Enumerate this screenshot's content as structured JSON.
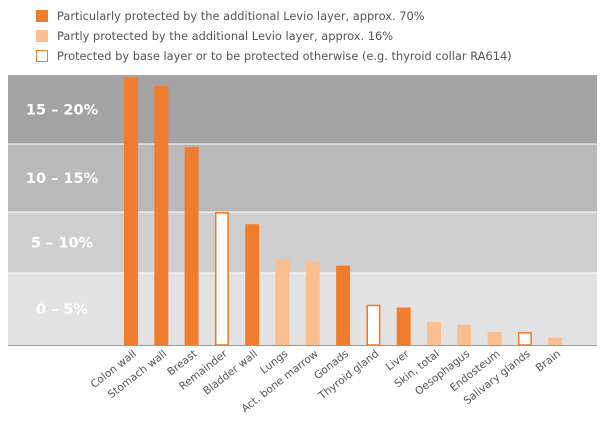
{
  "legend": {
    "items": [
      {
        "label": "Particularly protected by the additional Levio layer, approx. 70%",
        "style": "full"
      },
      {
        "label": "Partly protected by the additional Levio layer, approx. 16%",
        "style": "light"
      },
      {
        "label": "Protected by base layer or to be protected otherwise (e.g. thyroid collar RA614)",
        "style": "outline"
      }
    ]
  },
  "colors": {
    "full": "#f07d2e",
    "light": "#fbbf8f",
    "outline_fill": "#ffffff",
    "outline_stroke": "#f07d2e",
    "band_dark": "#a3a3a3",
    "band_mid": "#b9b9b9",
    "band_light": "#cfcfcf",
    "band_lightest": "#e2e2e2",
    "band_label": "#ffffff"
  },
  "chart_data": {
    "type": "bar",
    "bands": [
      {
        "label": "15 – 20%",
        "range": [
          15,
          20
        ]
      },
      {
        "label": "10 – 15%",
        "range": [
          10,
          15
        ]
      },
      {
        "label": "5 – 10%",
        "range": [
          5,
          10
        ]
      },
      {
        "label": "0 – 5%",
        "range": [
          0,
          5
        ]
      }
    ],
    "ylim": [
      0,
      20
    ],
    "categories": [
      "Colon wall",
      "Stomach wall",
      "Breast",
      "Remainder",
      "Bladder wall",
      "Lungs",
      "Act. bone marrow",
      "Gonads",
      "Thyroid gland",
      "Liver",
      "Skin, total",
      "Oesophagus",
      "Endosteum",
      "Salivary glands",
      "Brain"
    ],
    "values": [
      19.8,
      19.2,
      14.8,
      10.0,
      9.0,
      6.1,
      5.9,
      5.6,
      2.8,
      2.6,
      1.6,
      1.4,
      0.9,
      0.9,
      0.5
    ],
    "styles": [
      "full",
      "full",
      "full",
      "outline",
      "full",
      "light",
      "light",
      "full",
      "outline",
      "full",
      "light",
      "light",
      "light",
      "outline",
      "light"
    ],
    "xlabel": "",
    "ylabel": ""
  }
}
